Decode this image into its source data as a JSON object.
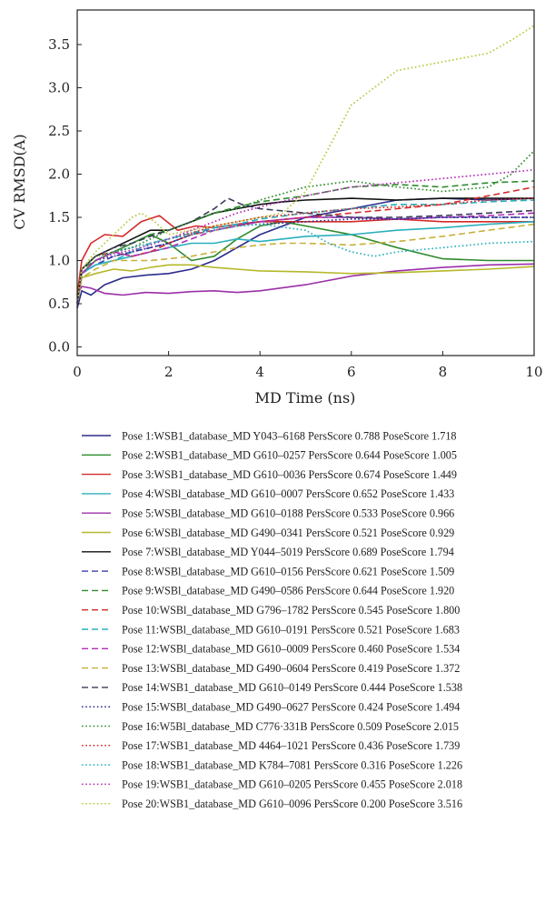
{
  "chart_data": {
    "type": "line",
    "title": "",
    "xlabel": "MD Time (ns)",
    "ylabel": "CV RMSD(A)",
    "xlim": [
      0,
      10
    ],
    "ylim": [
      -0.1,
      3.9
    ],
    "xticks": [
      0,
      2,
      4,
      6,
      8,
      10
    ],
    "yticks": [
      0.0,
      0.5,
      1.0,
      1.5,
      2.0,
      2.5,
      3.0,
      3.5
    ],
    "ytick_labels": [
      "0.0",
      "0.5",
      "1.0",
      "1.5",
      "2.0",
      "2.5",
      "3.0",
      "3.5"
    ],
    "grid": false,
    "legend_position": "below",
    "series": [
      {
        "name": "Pose 1:WSB1_database_MD Y043–6168 PersScore 0.788 PoseScore 1.718",
        "color": "#2b2b8c",
        "dash": "solid",
        "x": [
          0,
          0.1,
          0.3,
          0.6,
          1,
          1.5,
          2,
          2.5,
          3,
          3.5,
          4,
          5,
          6,
          7,
          8,
          9,
          10
        ],
        "y": [
          0.45,
          0.65,
          0.6,
          0.72,
          0.8,
          0.83,
          0.85,
          0.9,
          1.0,
          1.15,
          1.3,
          1.5,
          1.6,
          1.7,
          1.72,
          1.7,
          1.72
        ]
      },
      {
        "name": "Pose 2:WSB1_database_MD G610–0257 PersScore 0.644 PoseScore 1.005",
        "color": "#2e8b2e",
        "dash": "solid",
        "x": [
          0,
          0.1,
          0.4,
          0.8,
          1.2,
          1.6,
          2,
          2.5,
          3,
          3.5,
          4,
          4.5,
          5,
          6,
          7,
          8,
          9,
          10
        ],
        "y": [
          0.5,
          0.85,
          1.0,
          1.1,
          1.2,
          1.3,
          1.2,
          1.0,
          1.05,
          1.25,
          1.4,
          1.45,
          1.4,
          1.3,
          1.15,
          1.02,
          1.0,
          1.0
        ]
      },
      {
        "name": "Pose 3:WSB1_database_MD G610–0036 PersScore 0.674 PoseScore 1.449",
        "color": "#d42a2a",
        "dash": "solid",
        "x": [
          0,
          0.1,
          0.3,
          0.6,
          1,
          1.4,
          1.8,
          2.2,
          2.6,
          3,
          3.5,
          4,
          5,
          6,
          7,
          8,
          9,
          10
        ],
        "y": [
          0.6,
          1.0,
          1.2,
          1.3,
          1.28,
          1.45,
          1.52,
          1.35,
          1.4,
          1.38,
          1.42,
          1.45,
          1.45,
          1.45,
          1.48,
          1.45,
          1.45,
          1.45
        ]
      },
      {
        "name": "Pose 4:WSBl_database_MD G610–0007 PersScore 0.652 PoseScore 1.433",
        "color": "#2ab0bc",
        "dash": "solid",
        "x": [
          0,
          0.1,
          0.4,
          0.8,
          1.2,
          1.6,
          2,
          2.5,
          3,
          3.5,
          4,
          4.5,
          5,
          6,
          7,
          8,
          9,
          10
        ],
        "y": [
          0.5,
          0.85,
          0.95,
          1.0,
          1.05,
          1.1,
          1.15,
          1.2,
          1.2,
          1.25,
          1.22,
          1.25,
          1.28,
          1.3,
          1.35,
          1.38,
          1.42,
          1.45
        ]
      },
      {
        "name": "Pose 5:WSBl_database_MD G610–0188 PersScore 0.533 PoseScore 0.966",
        "color": "#9b2fa8",
        "dash": "solid",
        "x": [
          0,
          0.1,
          0.3,
          0.6,
          1,
          1.5,
          2,
          2.5,
          3,
          3.5,
          4,
          5,
          6,
          7,
          8,
          9,
          10
        ],
        "y": [
          0.6,
          0.7,
          0.68,
          0.62,
          0.6,
          0.63,
          0.62,
          0.64,
          0.65,
          0.63,
          0.65,
          0.72,
          0.82,
          0.88,
          0.92,
          0.95,
          0.96
        ]
      },
      {
        "name": "Pose 6:WSBl_database_MD G490–0341 PersScore 0.521 PoseScore 0.929",
        "color": "#b5b82a",
        "dash": "solid",
        "x": [
          0,
          0.1,
          0.4,
          0.8,
          1.2,
          1.6,
          2,
          2.5,
          3,
          3.5,
          4,
          5,
          6,
          7,
          8,
          9,
          10
        ],
        "y": [
          0.5,
          0.8,
          0.85,
          0.9,
          0.88,
          0.92,
          0.95,
          0.95,
          0.92,
          0.9,
          0.88,
          0.87,
          0.85,
          0.86,
          0.88,
          0.9,
          0.93
        ]
      },
      {
        "name": "Pose 7:WSBl_database_MD Y044–5019 PersScore 0.689 PoseScore 1.794",
        "color": "#111111",
        "dash": "solid",
        "x": [
          0,
          0.1,
          0.4,
          0.8,
          1.2,
          1.6,
          2,
          2.5,
          3,
          3.5,
          4,
          4.5,
          5,
          6,
          7,
          8,
          9,
          10
        ],
        "y": [
          0.5,
          0.9,
          1.05,
          1.15,
          1.25,
          1.35,
          1.35,
          1.45,
          1.55,
          1.6,
          1.65,
          1.68,
          1.7,
          1.72,
          1.7,
          1.72,
          1.72,
          1.72
        ]
      },
      {
        "name": "Pose 8:WSBl_database_MD G610–0156 PersScore 0.621 PoseScore 1.509",
        "color": "#3b3ba8",
        "dash": "dashed",
        "x": [
          0,
          0.1,
          0.4,
          0.8,
          1.2,
          1.6,
          2,
          2.5,
          3,
          3.5,
          4,
          5,
          6,
          7,
          8,
          9,
          10
        ],
        "y": [
          0.5,
          0.85,
          0.95,
          1.05,
          1.1,
          1.15,
          1.2,
          1.3,
          1.38,
          1.42,
          1.45,
          1.5,
          1.5,
          1.48,
          1.5,
          1.5,
          1.5
        ]
      },
      {
        "name": "Pose 9:WSBl_database_MD G490–0586 PersScore 0.644 PoseScore 1.920",
        "color": "#2e8b2e",
        "dash": "dashed",
        "x": [
          0,
          0.1,
          0.4,
          0.8,
          1.2,
          1.6,
          2,
          2.5,
          3,
          3.5,
          4,
          5,
          5.5,
          6,
          7,
          8,
          9,
          10
        ],
        "y": [
          0.5,
          0.9,
          1.0,
          1.1,
          1.2,
          1.3,
          1.35,
          1.45,
          1.55,
          1.62,
          1.68,
          1.75,
          1.8,
          1.85,
          1.88,
          1.85,
          1.9,
          1.92
        ]
      },
      {
        "name": "Pose 10:WSBl_database_MD G796–1782 PersScore 0.545 PoseScore 1.800",
        "color": "#d42a2a",
        "dash": "dashed",
        "x": [
          0,
          0.1,
          0.4,
          0.8,
          1.2,
          1.6,
          2,
          2.5,
          3,
          3.5,
          4,
          5,
          6,
          7,
          8,
          9,
          10
        ],
        "y": [
          0.5,
          0.9,
          1.05,
          1.1,
          1.05,
          1.1,
          1.2,
          1.3,
          1.35,
          1.4,
          1.45,
          1.5,
          1.55,
          1.6,
          1.65,
          1.75,
          1.85
        ]
      },
      {
        "name": "Pose 11:WSBl_database_MD G610–0191 PersScore 0.521 PoseScore 1.683",
        "color": "#2ab0bc",
        "dash": "dashed",
        "x": [
          0,
          0.1,
          0.4,
          0.8,
          1.2,
          1.6,
          2,
          2.5,
          3,
          3.5,
          4,
          5,
          6,
          7,
          8,
          9,
          10
        ],
        "y": [
          0.5,
          0.85,
          0.95,
          1.0,
          1.1,
          1.2,
          1.25,
          1.32,
          1.38,
          1.42,
          1.48,
          1.55,
          1.6,
          1.65,
          1.65,
          1.68,
          1.7
        ]
      },
      {
        "name": "Pose 12:WSBl_database_MD G610–0009 PersScore 0.460 PoseScore 1.534",
        "color": "#b42ab8",
        "dash": "dashed",
        "x": [
          0,
          0.1,
          0.4,
          0.8,
          1.2,
          1.6,
          2,
          2.5,
          3,
          3.5,
          4,
          5,
          6,
          7,
          8,
          9,
          10
        ],
        "y": [
          0.5,
          0.85,
          1.0,
          1.1,
          1.05,
          1.1,
          1.15,
          1.25,
          1.35,
          1.4,
          1.45,
          1.5,
          1.5,
          1.48,
          1.5,
          1.52,
          1.55
        ]
      },
      {
        "name": "Pose 13:WSBl_database_MD G490–0604 PersScore 0.419 PoseScore 1.372",
        "color": "#c7b03a",
        "dash": "dashed",
        "x": [
          0,
          0.1,
          0.4,
          0.8,
          1.2,
          1.6,
          2,
          2.5,
          3,
          3.5,
          4,
          4.5,
          5,
          6,
          7,
          8,
          9,
          10
        ],
        "y": [
          0.5,
          0.8,
          0.9,
          1.0,
          1.0,
          1.0,
          1.02,
          1.05,
          1.1,
          1.15,
          1.18,
          1.2,
          1.2,
          1.18,
          1.22,
          1.28,
          1.35,
          1.42
        ]
      },
      {
        "name": "Pose 14:WSB1_database_MD G610–0149 PersScore 0.444 PoseScore 1.538",
        "color": "#3a3a5a",
        "dash": "dashed",
        "x": [
          0,
          0.1,
          0.4,
          0.8,
          1.2,
          1.6,
          2,
          2.5,
          3,
          3.3,
          3.6,
          4,
          5,
          6,
          7,
          8,
          9,
          10
        ],
        "y": [
          0.5,
          0.9,
          1.05,
          1.15,
          1.2,
          1.28,
          1.35,
          1.45,
          1.6,
          1.72,
          1.65,
          1.6,
          1.55,
          1.5,
          1.5,
          1.52,
          1.55,
          1.58
        ]
      },
      {
        "name": "Pose 15:WSBl_database_MD G490–0627 PersScore 0.424 PoseScore 1.494",
        "color": "#2b2b8c",
        "dash": "dotted",
        "x": [
          0,
          0.1,
          0.4,
          0.8,
          1.2,
          1.6,
          2,
          2.5,
          3,
          3.5,
          4,
          5,
          6,
          7,
          8,
          9,
          10
        ],
        "y": [
          0.5,
          0.85,
          1.0,
          1.05,
          1.1,
          1.15,
          1.2,
          1.3,
          1.35,
          1.4,
          1.42,
          1.45,
          1.48,
          1.48,
          1.5,
          1.5,
          1.5
        ]
      },
      {
        "name": "Pose 16:W5Bl_database_MD C776·331B PersScore 0.509 PoseScore 2.015",
        "color": "#2e8b2e",
        "dash": "dotted",
        "x": [
          0,
          0.1,
          0.4,
          0.8,
          1.2,
          1.6,
          2,
          2.5,
          3,
          3.5,
          4,
          5,
          6,
          7,
          8,
          9,
          9.5,
          10
        ],
        "y": [
          0.5,
          0.9,
          1.05,
          1.1,
          1.15,
          1.25,
          1.35,
          1.45,
          1.55,
          1.6,
          1.7,
          1.85,
          1.92,
          1.85,
          1.8,
          1.85,
          2.0,
          2.27
        ]
      },
      {
        "name": "Pose 17:WSB1_database_MD 4464–1021 PersScore 0.436 PoseScore 1.739",
        "color": "#d42a2a",
        "dash": "dotted",
        "x": [
          0,
          0.1,
          0.4,
          0.8,
          1.2,
          1.6,
          2,
          2.5,
          3,
          3.5,
          4,
          5,
          6,
          7,
          8,
          9,
          10
        ],
        "y": [
          0.5,
          0.85,
          1.0,
          1.1,
          1.15,
          1.2,
          1.25,
          1.32,
          1.4,
          1.45,
          1.5,
          1.55,
          1.6,
          1.62,
          1.65,
          1.7,
          1.72
        ]
      },
      {
        "name": "Pose 18:WSB1_database_MD K784–7081 PersScore 0.316 PoseScore 1.226",
        "color": "#2ab0bc",
        "dash": "dotted",
        "x": [
          0,
          0.1,
          0.4,
          0.8,
          1.2,
          1.6,
          2,
          2.5,
          3,
          3.5,
          4,
          5,
          5.5,
          6,
          6.5,
          7,
          8,
          9,
          10
        ],
        "y": [
          0.5,
          0.85,
          1.0,
          1.1,
          1.15,
          1.2,
          1.25,
          1.3,
          1.35,
          1.4,
          1.42,
          1.35,
          1.2,
          1.1,
          1.05,
          1.1,
          1.15,
          1.2,
          1.22
        ]
      },
      {
        "name": "Pose 19:WSB1_database_MD G610–0205 PersScore 0.455 PoseScore 2.018",
        "color": "#b42ab8",
        "dash": "dotted",
        "x": [
          0,
          0.1,
          0.4,
          0.8,
          1.2,
          1.6,
          2,
          2.5,
          3,
          3.5,
          4,
          5,
          6,
          7,
          8,
          9,
          10
        ],
        "y": [
          0.5,
          0.85,
          1.0,
          1.08,
          1.12,
          1.18,
          1.25,
          1.35,
          1.45,
          1.55,
          1.62,
          1.75,
          1.85,
          1.9,
          1.95,
          2.0,
          2.05
        ]
      },
      {
        "name": "Pose 20:WSB1_database_MD G610–0096 PersScore 0.200 PoseScore 3.516",
        "color": "#b5c93a",
        "dash": "dotted",
        "x": [
          0,
          0.1,
          0.4,
          0.8,
          1.2,
          1.4,
          1.7,
          2,
          2.5,
          3,
          3.5,
          4,
          4.5,
          5,
          5.5,
          6,
          6.5,
          7,
          7.5,
          8,
          9,
          9.5,
          10
        ],
        "y": [
          0.5,
          0.9,
          1.1,
          1.3,
          1.5,
          1.55,
          1.45,
          1.3,
          1.35,
          1.4,
          1.45,
          1.5,
          1.55,
          1.8,
          2.3,
          2.8,
          3.0,
          3.2,
          3.25,
          3.3,
          3.4,
          3.55,
          3.72
        ]
      }
    ]
  }
}
